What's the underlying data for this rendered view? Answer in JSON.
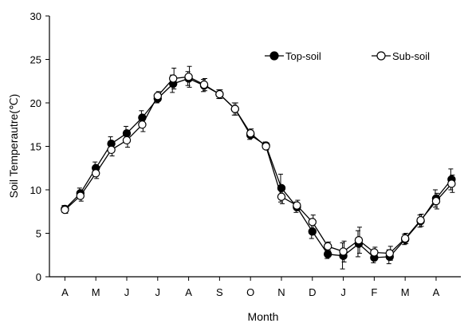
{
  "chart_data": {
    "type": "line",
    "title": "",
    "xlabel": "Month",
    "ylabel": "Soil Temperautre(℃)",
    "ylim": [
      0,
      30
    ],
    "yticks": [
      0,
      5,
      10,
      15,
      20,
      25,
      30
    ],
    "grid": false,
    "legend_position": "top-right",
    "month_labels": [
      "A",
      "M",
      "J",
      "J",
      "A",
      "S",
      "O",
      "N",
      "D",
      "J",
      "F",
      "M",
      "A"
    ],
    "x": [
      1,
      1.5,
      2,
      2.5,
      3,
      3.5,
      4,
      4.5,
      5,
      5.5,
      6,
      6.5,
      7,
      7.5,
      8,
      8.5,
      9,
      9.5,
      10,
      10.5,
      11,
      11.5,
      12,
      12.5,
      13,
      13.5
    ],
    "series": [
      {
        "name": "Top-soil",
        "marker": "filled-circle",
        "color": "#000000",
        "values": [
          7.8,
          9.6,
          12.5,
          15.3,
          16.5,
          18.3,
          20.5,
          22.2,
          22.8,
          22.0,
          21.0,
          19.3,
          16.3,
          15.1,
          10.2,
          8.0,
          5.2,
          2.6,
          2.4,
          3.8,
          2.2,
          2.3,
          4.3,
          6.4,
          9.0,
          11.2
        ],
        "errors": [
          0.4,
          0.6,
          0.7,
          0.8,
          0.8,
          0.8,
          0.5,
          1.0,
          0.8,
          0.7,
          0.5,
          0.7,
          0.5,
          0.4,
          1.6,
          0.6,
          0.8,
          0.5,
          1.5,
          1.5,
          0.6,
          0.8,
          0.6,
          0.7,
          1.0,
          1.2
        ]
      },
      {
        "name": "Sub-soil",
        "marker": "open-circle",
        "color": "#000000",
        "values": [
          7.7,
          9.3,
          11.9,
          14.6,
          15.7,
          17.5,
          20.8,
          22.8,
          23.0,
          22.1,
          21.0,
          19.3,
          16.5,
          15.0,
          9.2,
          8.2,
          6.3,
          3.5,
          2.9,
          4.2,
          2.8,
          2.7,
          4.4,
          6.5,
          8.7,
          10.7
        ],
        "errors": [
          0.4,
          0.6,
          0.6,
          0.7,
          0.8,
          0.8,
          0.5,
          1.2,
          1.2,
          0.7,
          0.5,
          0.7,
          0.5,
          0.4,
          0.8,
          0.6,
          0.8,
          0.5,
          1.2,
          1.5,
          0.6,
          0.8,
          0.6,
          0.7,
          0.9,
          1.0
        ]
      }
    ]
  }
}
